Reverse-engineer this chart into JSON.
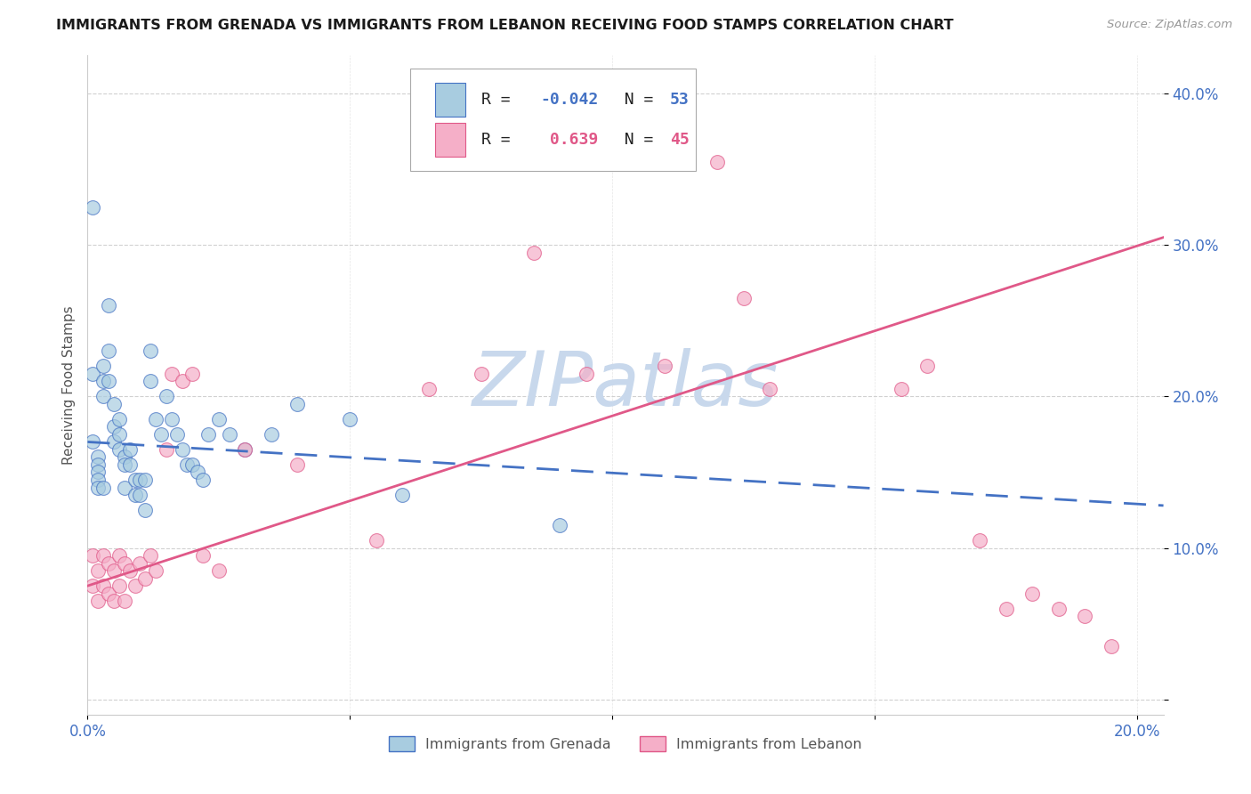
{
  "title": "IMMIGRANTS FROM GRENADA VS IMMIGRANTS FROM LEBANON RECEIVING FOOD STAMPS CORRELATION CHART",
  "source": "Source: ZipAtlas.com",
  "ylabel": "Receiving Food Stamps",
  "legend_label_blue": "Immigrants from Grenada",
  "legend_label_pink": "Immigrants from Lebanon",
  "R_blue": -0.042,
  "N_blue": 53,
  "R_pink": 0.639,
  "N_pink": 45,
  "xlim": [
    0.0,
    0.205
  ],
  "ylim": [
    -0.01,
    0.425
  ],
  "yticks": [
    0.0,
    0.1,
    0.2,
    0.3,
    0.4
  ],
  "ytick_labels": [
    "",
    "10.0%",
    "20.0%",
    "30.0%",
    "40.0%"
  ],
  "xticks": [
    0.0,
    0.05,
    0.1,
    0.15,
    0.2
  ],
  "xtick_labels": [
    "0.0%",
    "",
    "",
    "",
    "20.0%"
  ],
  "color_blue": "#a8cce0",
  "color_pink": "#f5afc8",
  "color_blue_line": "#4472c4",
  "color_pink_line": "#e05888",
  "watermark_color": "#c8d8ec",
  "title_fontsize": 11.5,
  "tick_label_color": "#4472c4",
  "background_color": "#ffffff",
  "grid_color": "#cccccc",
  "blue_trend_x0": 0.0,
  "blue_trend_y0": 0.17,
  "blue_trend_x1": 0.205,
  "blue_trend_y1": 0.128,
  "pink_trend_x0": 0.0,
  "pink_trend_y0": 0.075,
  "pink_trend_x1": 0.205,
  "pink_trend_y1": 0.305,
  "blue_x": [
    0.001,
    0.001,
    0.001,
    0.002,
    0.002,
    0.002,
    0.002,
    0.002,
    0.003,
    0.003,
    0.003,
    0.003,
    0.004,
    0.004,
    0.004,
    0.005,
    0.005,
    0.005,
    0.006,
    0.006,
    0.006,
    0.007,
    0.007,
    0.007,
    0.008,
    0.008,
    0.009,
    0.009,
    0.01,
    0.01,
    0.011,
    0.011,
    0.012,
    0.012,
    0.013,
    0.014,
    0.015,
    0.016,
    0.017,
    0.018,
    0.019,
    0.02,
    0.021,
    0.022,
    0.023,
    0.025,
    0.027,
    0.03,
    0.035,
    0.04,
    0.05,
    0.06,
    0.09
  ],
  "blue_y": [
    0.325,
    0.215,
    0.17,
    0.16,
    0.155,
    0.15,
    0.145,
    0.14,
    0.22,
    0.21,
    0.2,
    0.14,
    0.26,
    0.23,
    0.21,
    0.195,
    0.18,
    0.17,
    0.185,
    0.175,
    0.165,
    0.16,
    0.155,
    0.14,
    0.165,
    0.155,
    0.145,
    0.135,
    0.145,
    0.135,
    0.145,
    0.125,
    0.23,
    0.21,
    0.185,
    0.175,
    0.2,
    0.185,
    0.175,
    0.165,
    0.155,
    0.155,
    0.15,
    0.145,
    0.175,
    0.185,
    0.175,
    0.165,
    0.175,
    0.195,
    0.185,
    0.135,
    0.115
  ],
  "pink_x": [
    0.001,
    0.001,
    0.002,
    0.002,
    0.003,
    0.003,
    0.004,
    0.004,
    0.005,
    0.005,
    0.006,
    0.006,
    0.007,
    0.007,
    0.008,
    0.009,
    0.01,
    0.011,
    0.012,
    0.013,
    0.015,
    0.016,
    0.018,
    0.02,
    0.022,
    0.025,
    0.03,
    0.04,
    0.055,
    0.065,
    0.075,
    0.085,
    0.095,
    0.11,
    0.12,
    0.125,
    0.13,
    0.155,
    0.16,
    0.17,
    0.175,
    0.18,
    0.185,
    0.19,
    0.195
  ],
  "pink_y": [
    0.095,
    0.075,
    0.085,
    0.065,
    0.095,
    0.075,
    0.09,
    0.07,
    0.085,
    0.065,
    0.095,
    0.075,
    0.09,
    0.065,
    0.085,
    0.075,
    0.09,
    0.08,
    0.095,
    0.085,
    0.165,
    0.215,
    0.21,
    0.215,
    0.095,
    0.085,
    0.165,
    0.155,
    0.105,
    0.205,
    0.215,
    0.295,
    0.215,
    0.22,
    0.355,
    0.265,
    0.205,
    0.205,
    0.22,
    0.105,
    0.06,
    0.07,
    0.06,
    0.055,
    0.035
  ]
}
